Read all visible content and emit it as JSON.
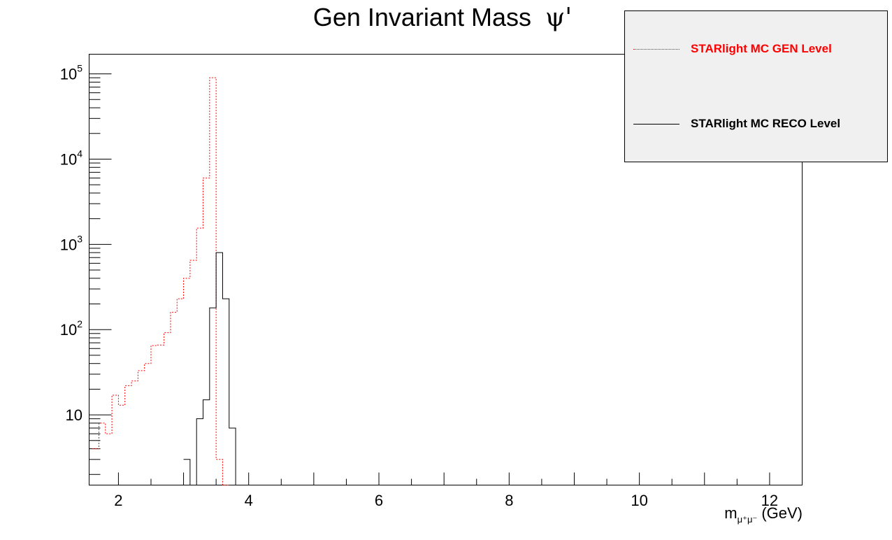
{
  "colors": {
    "gen": "#ff0000",
    "reco": "#000000",
    "legend_bg": "#f0f0f0"
  },
  "chart_data": {
    "type": "histogram-step",
    "title": "Gen Invariant Mass",
    "title_symbol": "ψ'",
    "xlabel_base": "m",
    "xlabel_sub": "μ⁺μ⁻",
    "xlabel_unit": "(GeV)",
    "xlim": [
      1.55,
      12.5
    ],
    "ylim": [
      1.5,
      170000
    ],
    "y_scale": "log",
    "bin_width": 0.1,
    "x_ticks": [
      {
        "value": 2,
        "label": "2"
      },
      {
        "value": 4,
        "label": "4"
      },
      {
        "value": 6,
        "label": "6"
      },
      {
        "value": 8,
        "label": "8"
      },
      {
        "value": 10,
        "label": "10"
      },
      {
        "value": 12,
        "label": "12"
      }
    ],
    "y_ticks": [
      {
        "value": 10,
        "base": "10",
        "exp": ""
      },
      {
        "value": 100,
        "base": "10",
        "exp": "2"
      },
      {
        "value": 1000,
        "base": "10",
        "exp": "3"
      },
      {
        "value": 10000,
        "base": "10",
        "exp": "4"
      },
      {
        "value": 100000,
        "base": "10",
        "exp": "5"
      }
    ],
    "grid": false,
    "legend_position": "top-right",
    "series": [
      {
        "name": "STARlight MC GEN Level",
        "style": "dotted",
        "color": "#ff0000",
        "bins": [
          [
            1.6,
            4
          ],
          [
            1.7,
            8
          ],
          [
            1.8,
            6
          ],
          [
            1.9,
            17
          ],
          [
            2.0,
            13
          ],
          [
            2.1,
            22
          ],
          [
            2.2,
            25
          ],
          [
            2.3,
            33
          ],
          [
            2.4,
            40
          ],
          [
            2.5,
            65
          ],
          [
            2.6,
            66
          ],
          [
            2.7,
            92
          ],
          [
            2.8,
            160
          ],
          [
            2.9,
            230
          ],
          [
            3.0,
            400
          ],
          [
            3.1,
            650
          ],
          [
            3.2,
            1550
          ],
          [
            3.3,
            6000
          ],
          [
            3.4,
            90000
          ],
          [
            3.5,
            3
          ],
          [
            3.6,
            0
          ]
        ]
      },
      {
        "name": "STARlight MC RECO Level",
        "style": "solid",
        "color": "#000000",
        "bins": [
          [
            3.0,
            3
          ],
          [
            3.1,
            0
          ],
          [
            3.2,
            9
          ],
          [
            3.3,
            15
          ],
          [
            3.4,
            180
          ],
          [
            3.5,
            800
          ],
          [
            3.6,
            230
          ],
          [
            3.7,
            7
          ],
          [
            3.8,
            0
          ]
        ]
      }
    ]
  },
  "legend": {
    "gen_label": "STARlight MC GEN Level",
    "reco_label": "STARlight MC RECO Level"
  }
}
